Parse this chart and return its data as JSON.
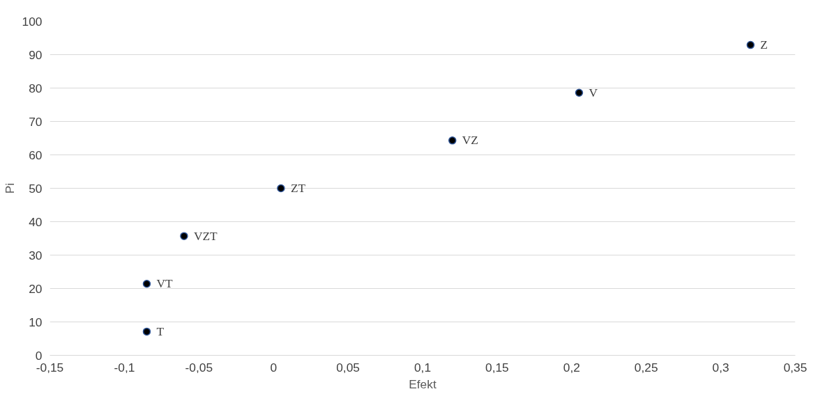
{
  "chart_data": {
    "type": "scatter",
    "xlabel": "Efekt",
    "ylabel": "Pi",
    "x": [
      -0.085,
      -0.085,
      -0.06,
      0.005,
      0.12,
      0.205,
      0.32
    ],
    "series": [
      {
        "color": "#000000",
        "values": [
          7.1,
          21.4,
          35.7,
          50,
          64.3,
          78.6,
          92.9
        ]
      }
    ],
    "annotations": [
      {
        "text": "T",
        "x": -0.085,
        "y": 7.1
      },
      {
        "text": "VT",
        "x": -0.085,
        "y": 21.4
      },
      {
        "text": "VZT",
        "x": -0.06,
        "y": 35.7
      },
      {
        "text": "ZT",
        "x": 0.005,
        "y": 50
      },
      {
        "text": "VZ",
        "x": 0.12,
        "y": 64.3
      },
      {
        "text": "V",
        "x": 0.205,
        "y": 78.6
      },
      {
        "text": "Z",
        "x": 0.32,
        "y": 92.9
      }
    ],
    "xlim": [
      -0.15,
      0.35
    ],
    "xticks": [
      {
        "value": -0.15,
        "label": "-0,15"
      },
      {
        "value": -0.1,
        "label": "-0,1"
      },
      {
        "value": -0.05,
        "label": "-0,05"
      },
      0,
      {
        "value": 0.05,
        "label": "0,05"
      },
      {
        "value": 0.1,
        "label": "0,1"
      },
      {
        "value": 0.15,
        "label": "0,15"
      },
      {
        "value": 0.2,
        "label": "0,2"
      },
      {
        "value": 0.25,
        "label": "0,25"
      },
      {
        "value": 0.3,
        "label": "0,3"
      },
      {
        "value": 0.35,
        "label": "0,35"
      }
    ],
    "ylim": [
      0,
      100
    ],
    "yticks": [
      0,
      10,
      20,
      30,
      40,
      50,
      60,
      70,
      80,
      90,
      100
    ],
    "grid": "y",
    "marker": "circle"
  }
}
